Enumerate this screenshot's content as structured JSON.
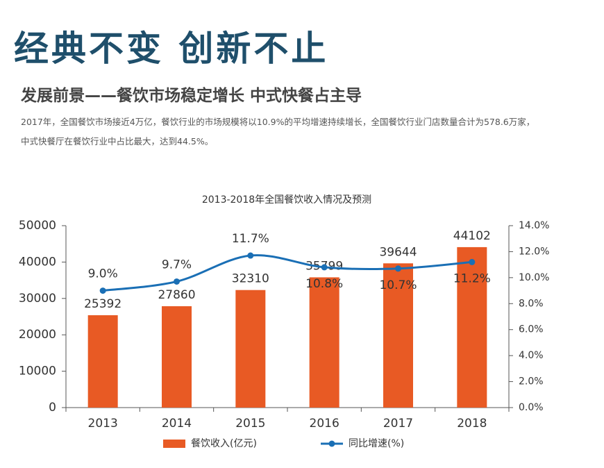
{
  "header": {
    "title": "经典不变 创新不止",
    "subtitle": "发展前景——餐饮市场稳定增长 中式快餐占主导",
    "paragraph": [
      "2017年，全国餐饮市场接近4万亿，餐饮行业的市场规模将以10.9%的平均增速持续增长，全国餐饮行业门店数量合计为578.6万家，",
      "中式快餐厅在餐饮行业中占比最大，达到44.5%。"
    ]
  },
  "chart_data": {
    "type": "bar",
    "title": "2013-2018年全国餐饮收入情况及预测",
    "categories": [
      "2013",
      "2014",
      "2015",
      "2016",
      "2017",
      "2018"
    ],
    "series": [
      {
        "name": "餐饮收入(亿元)",
        "color": "#e85a24",
        "type": "bar",
        "values": [
          25392,
          27860,
          32310,
          35799,
          39644,
          44102
        ]
      },
      {
        "name": "同比增速(%)",
        "color": "#1a6fb5",
        "type": "line",
        "axis": "y2",
        "values": [
          9.0,
          9.7,
          11.7,
          10.8,
          10.7,
          11.2
        ],
        "value_labels": [
          "9.0%",
          "9.7%",
          "11.7%",
          "10.8%",
          "10.7%",
          "11.2%"
        ]
      }
    ],
    "ylim": [
      0,
      50000
    ],
    "yticks": [
      0,
      10000,
      20000,
      30000,
      40000,
      50000
    ],
    "y2lim": [
      0,
      14
    ],
    "y2ticks": [
      {
        "value": 0,
        "label": "0.0%"
      },
      {
        "value": 2,
        "label": "2.0%"
      },
      {
        "value": 4,
        "label": "4.0%"
      },
      {
        "value": 6,
        "label": "6.0%"
      },
      {
        "value": 8,
        "label": "8.0%"
      },
      {
        "value": 10,
        "label": "10.0%"
      },
      {
        "value": 12,
        "label": "12.0%"
      },
      {
        "value": 14,
        "label": "14.0%"
      }
    ],
    "legend": "bottom"
  }
}
